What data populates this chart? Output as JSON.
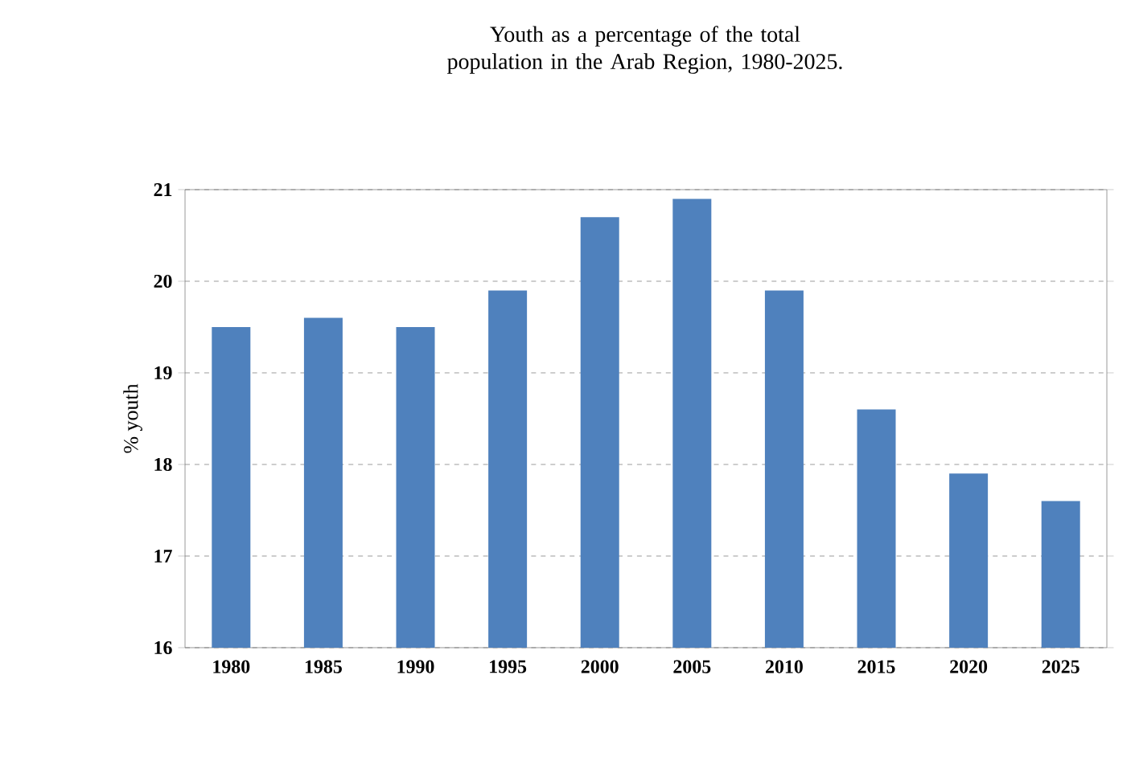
{
  "chart_data": {
    "type": "bar",
    "title": "Youth as a percentage of the total population in the Arab Region, 1980-2025.",
    "ylabel": "% youth",
    "categories": [
      "1980",
      "1985",
      "1990",
      "1995",
      "2000",
      "2005",
      "2010",
      "2015",
      "2020",
      "2025"
    ],
    "values": [
      19.5,
      19.6,
      19.5,
      19.9,
      20.7,
      20.9,
      19.9,
      18.6,
      17.9,
      17.6
    ],
    "color": "#4f81bd",
    "ylim": [
      16,
      21
    ],
    "yticks": [
      16,
      17,
      18,
      19,
      20,
      21
    ],
    "grid": "y"
  }
}
